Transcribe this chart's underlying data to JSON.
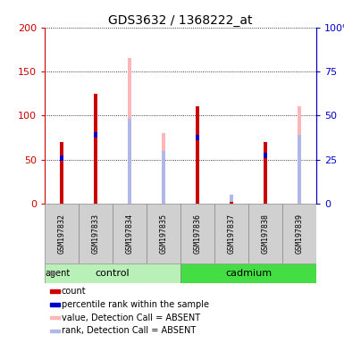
{
  "title": "GDS3632 / 1368222_at",
  "samples": [
    "GSM197832",
    "GSM197833",
    "GSM197834",
    "GSM197835",
    "GSM197836",
    "GSM197837",
    "GSM197838",
    "GSM197839"
  ],
  "count_values": [
    70,
    125,
    0,
    0,
    110,
    2,
    70,
    0
  ],
  "rank_values": [
    52,
    78,
    0,
    0,
    75,
    0,
    55,
    0
  ],
  "absent_value_values": [
    0,
    0,
    165,
    80,
    0,
    0,
    0,
    110
  ],
  "absent_rank_values": [
    0,
    0,
    93,
    57,
    0,
    10,
    0,
    75
  ],
  "ylim": [
    0,
    200
  ],
  "y2lim": [
    0,
    100
  ],
  "yticks": [
    0,
    50,
    100,
    150,
    200
  ],
  "ytick_labels": [
    "0",
    "50",
    "100",
    "150",
    "200"
  ],
  "y2ticks": [
    0,
    25,
    50,
    75,
    100
  ],
  "y2tick_labels": [
    "0",
    "25",
    "50",
    "75",
    "100%"
  ],
  "bar_width": 0.12,
  "absent_bar_width": 0.12,
  "rank_bar_width": 0.12,
  "count_color": "#cc0000",
  "rank_color": "#0000cc",
  "absent_value_color": "#ffb6b6",
  "absent_rank_color": "#b0b8e8",
  "bg_gray": "#d0d0d0",
  "bg_plot": "#ffffff",
  "left_axis_color": "#cc0000",
  "right_axis_color": "#0000cc",
  "control_color": "#b8f0b8",
  "cadmium_color": "#44dd44",
  "agent_label": "agent",
  "legend_items": [
    {
      "color": "#cc0000",
      "label": "count"
    },
    {
      "color": "#0000cc",
      "label": "percentile rank within the sample"
    },
    {
      "color": "#ffb6b6",
      "label": "value, Detection Call = ABSENT"
    },
    {
      "color": "#b0b8e8",
      "label": "rank, Detection Call = ABSENT"
    }
  ]
}
